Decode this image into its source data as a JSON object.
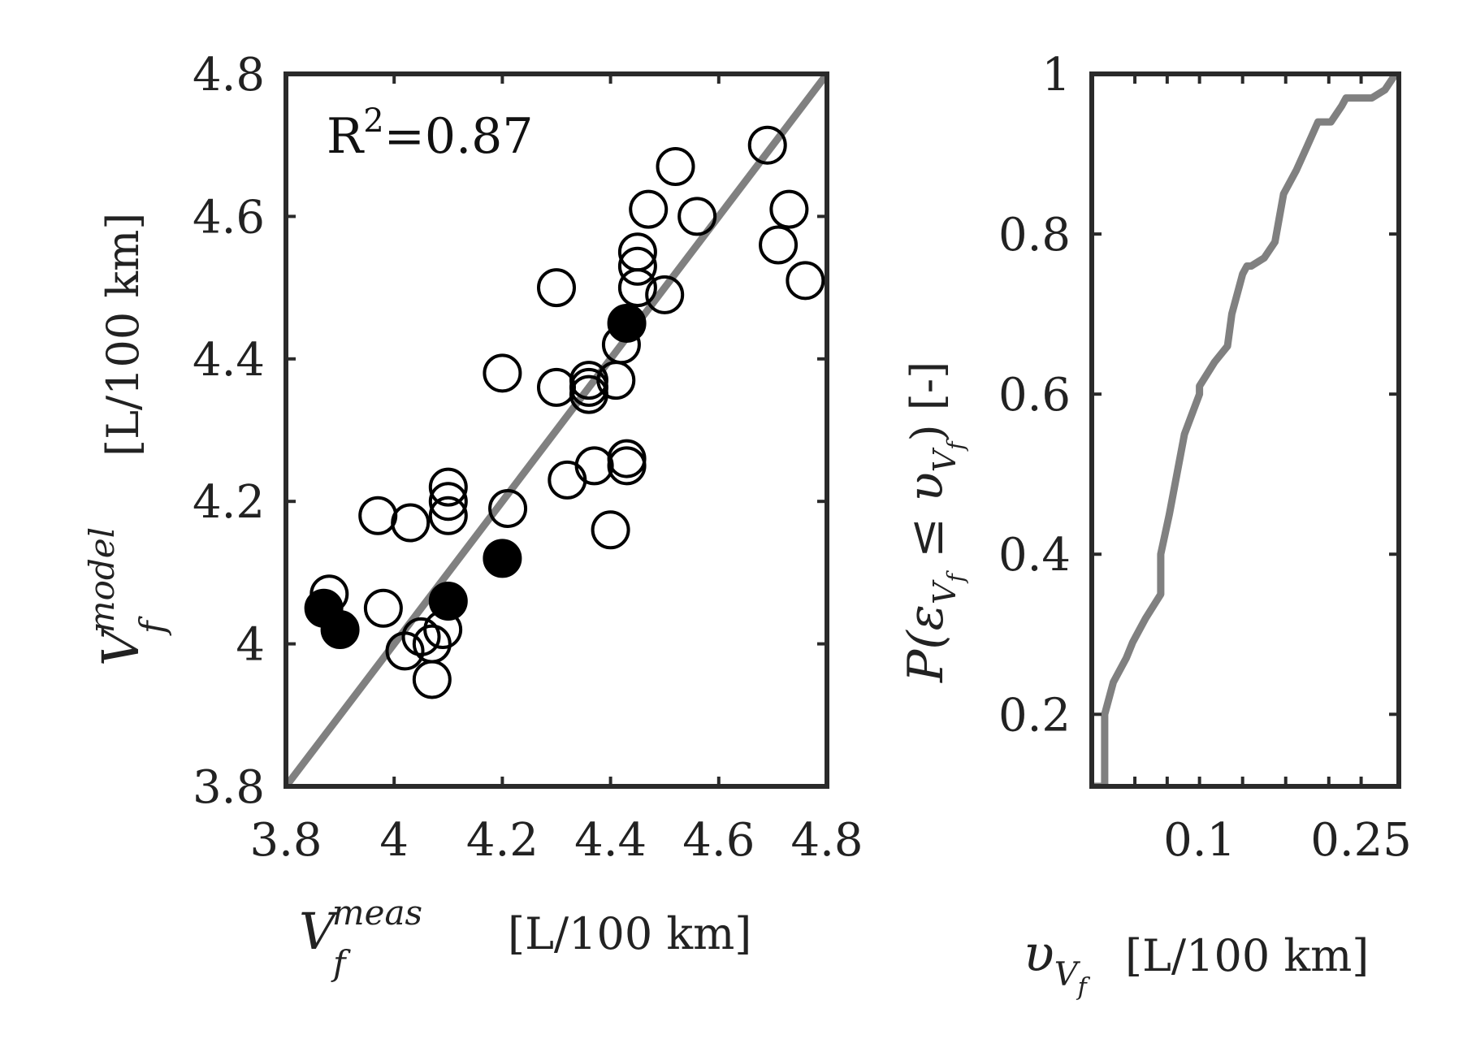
{
  "colors": {
    "axis": "#2a2a2a",
    "line": "#808080",
    "marker": "#000000",
    "text": "#222222"
  },
  "chart_data": [
    {
      "type": "scatter",
      "title": "",
      "xlabel": {
        "symbol": "V",
        "sub": "f",
        "sup": "meas",
        "unit": "[L/100 km]"
      },
      "ylabel": {
        "symbol": "V",
        "sub": "f",
        "sup": "model",
        "unit": "[L/100 km]"
      },
      "xlim": [
        3.8,
        4.8
      ],
      "ylim": [
        3.8,
        4.8
      ],
      "xticks": [
        "3.8",
        "4",
        "4.2",
        "4.4",
        "4.6",
        "4.8"
      ],
      "xtick_values": [
        3.8,
        4.0,
        4.2,
        4.4,
        4.6,
        4.8
      ],
      "yticks": [
        "3.8",
        "4",
        "4.2",
        "4.4",
        "4.6",
        "4.8"
      ],
      "ytick_values": [
        3.8,
        4.0,
        4.2,
        4.4,
        4.6,
        4.8
      ],
      "annotation": {
        "base": "R",
        "sup": "2",
        "rest": "=0.87"
      },
      "reference_line": {
        "x": [
          3.8,
          4.8
        ],
        "y": [
          3.8,
          4.8
        ]
      },
      "series": [
        {
          "name": "open",
          "filled": false,
          "points": [
            [
              3.88,
              4.07
            ],
            [
              3.98,
              4.05
            ],
            [
              3.97,
              4.18
            ],
            [
              4.03,
              4.17
            ],
            [
              4.02,
              3.99
            ],
            [
              4.05,
              4.01
            ],
            [
              4.07,
              4.0
            ],
            [
              4.09,
              4.02
            ],
            [
              4.07,
              3.95
            ],
            [
              4.1,
              4.22
            ],
            [
              4.1,
              4.2
            ],
            [
              4.1,
              4.18
            ],
            [
              4.21,
              4.19
            ],
            [
              4.2,
              4.38
            ],
            [
              4.3,
              4.36
            ],
            [
              4.3,
              4.5
            ],
            [
              4.32,
              4.23
            ],
            [
              4.36,
              4.37
            ],
            [
              4.36,
              4.36
            ],
            [
              4.36,
              4.35
            ],
            [
              4.37,
              4.25
            ],
            [
              4.4,
              4.16
            ],
            [
              4.41,
              4.37
            ],
            [
              4.42,
              4.42
            ],
            [
              4.43,
              4.26
            ],
            [
              4.43,
              4.25
            ],
            [
              4.45,
              4.55
            ],
            [
              4.45,
              4.53
            ],
            [
              4.45,
              4.5
            ],
            [
              4.47,
              4.61
            ],
            [
              4.5,
              4.49
            ],
            [
              4.52,
              4.67
            ],
            [
              4.56,
              4.6
            ],
            [
              4.69,
              4.7
            ],
            [
              4.71,
              4.56
            ],
            [
              4.73,
              4.61
            ],
            [
              4.76,
              4.51
            ]
          ]
        },
        {
          "name": "filled",
          "filled": true,
          "points": [
            [
              3.87,
              4.05
            ],
            [
              3.9,
              4.02
            ],
            [
              4.1,
              4.06
            ],
            [
              4.2,
              4.12
            ],
            [
              4.43,
              4.45
            ]
          ]
        }
      ]
    },
    {
      "type": "line",
      "title": "",
      "xlabel": {
        "symbol": "υ",
        "sub": "V",
        "subsub": "f",
        "unit": "[L/100 km]"
      },
      "ylabel": {
        "text": "P(ε",
        "sub": "V",
        "subsub": "f",
        "mid": " ≤ υ",
        "sub2": "V",
        "subsub2": "f",
        "end": ") [-]"
      },
      "xlim": [
        0.0,
        0.285
      ],
      "ylim": [
        0.11,
        1.0
      ],
      "xticks": [
        "0.1",
        "0.25"
      ],
      "xtick_values": [
        0.1,
        0.25
      ],
      "yticks": [
        "0.2",
        "0.4",
        "0.6",
        "0.8",
        "1"
      ],
      "ytick_values": [
        0.2,
        0.4,
        0.6,
        0.8,
        1.0
      ],
      "minor_xticks": [
        0.04,
        0.07,
        0.1,
        0.14,
        0.18,
        0.22,
        0.25
      ],
      "series": [
        {
          "name": "CDF",
          "x": [
            0.0,
            0.012,
            0.012,
            0.02,
            0.032,
            0.038,
            0.05,
            0.05,
            0.064,
            0.064,
            0.072,
            0.086,
            0.1,
            0.1,
            0.114,
            0.126,
            0.13,
            0.14,
            0.144,
            0.148,
            0.16,
            0.17,
            0.178,
            0.19,
            0.2,
            0.21,
            0.222,
            0.232,
            0.236,
            0.244,
            0.26,
            0.272,
            0.282
          ],
          "y": [
            0.11,
            0.11,
            0.2,
            0.24,
            0.27,
            0.29,
            0.32,
            0.32,
            0.35,
            0.4,
            0.45,
            0.55,
            0.6,
            0.61,
            0.64,
            0.66,
            0.7,
            0.75,
            0.76,
            0.76,
            0.77,
            0.79,
            0.85,
            0.88,
            0.91,
            0.94,
            0.94,
            0.96,
            0.97,
            0.97,
            0.97,
            0.98,
            1.0
          ]
        }
      ]
    }
  ]
}
